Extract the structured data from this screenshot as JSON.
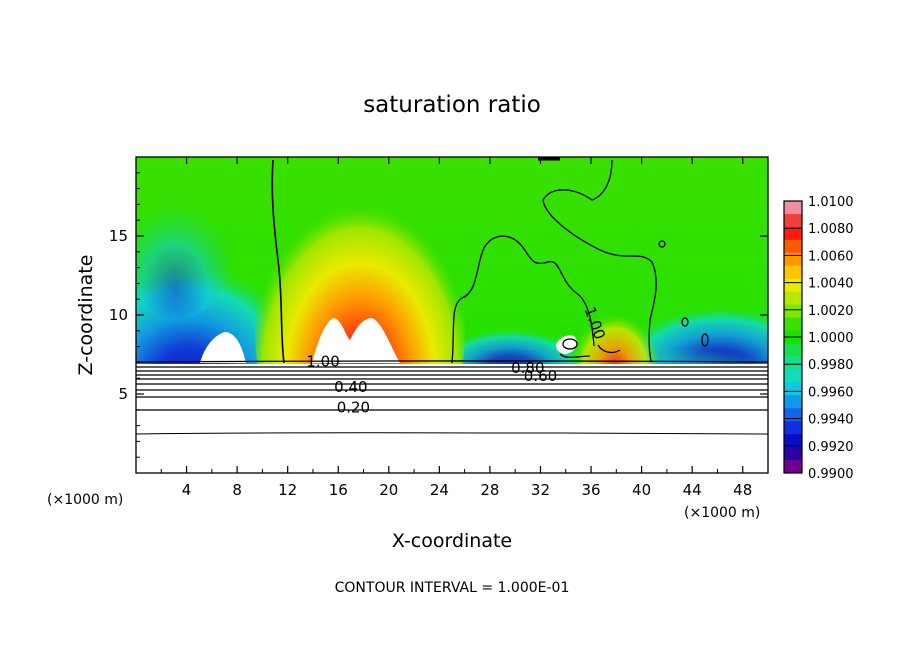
{
  "chart_data": {
    "type": "heatmap",
    "title": "saturation ratio",
    "xlabel": "X-coordinate",
    "ylabel": "Z-coordinate",
    "x_unit": "(×1000 m)",
    "x_unit_right": "(×1000 m)",
    "footer": "CONTOUR INTERVAL = 1.000E-01",
    "xlim": [
      0,
      50
    ],
    "ylim": [
      0,
      20
    ],
    "x_ticks": [
      4,
      8,
      12,
      16,
      20,
      24,
      28,
      32,
      36,
      40,
      44,
      48
    ],
    "y_ticks": [
      5,
      10,
      15
    ],
    "colorbar": {
      "min": 0.99,
      "max": 1.01,
      "step": 0.001,
      "labels": [
        "1.0100",
        "1.0080",
        "1.0060",
        "1.0040",
        "1.0020",
        "1.0000",
        "0.9980",
        "0.9960",
        "0.9940",
        "0.9920",
        "0.9900"
      ],
      "colors": [
        "#ef8ea0",
        "#ef3f3f",
        "#ff1a10",
        "#ff5a00",
        "#ff9800",
        "#ffc600",
        "#eaea00",
        "#b6e800",
        "#7ee600",
        "#3ae000",
        "#18e000",
        "#17e04a",
        "#15df8a",
        "#12dcbc",
        "#10c8e0",
        "#1098ec",
        "#1066ec",
        "#1030e0",
        "#0b0bc8",
        "#2a00a8",
        "#700090"
      ]
    },
    "contour_labels": [
      {
        "value": "1.00",
        "x": 14.8,
        "z": 6.8
      },
      {
        "value": "0.40",
        "x": 17.0,
        "z": 5.2
      },
      {
        "value": "0.20",
        "x": 17.2,
        "z": 3.9
      },
      {
        "value": "0.80",
        "x": 31.0,
        "z": 6.4
      },
      {
        "value": "0.60",
        "x": 32.0,
        "z": 5.9
      },
      {
        "value": "1.00",
        "x": 36.0,
        "z": 9.4
      }
    ],
    "features": [
      {
        "kind": "dry-minimum",
        "x": 6.5,
        "z": 9.2,
        "value": 0.99
      },
      {
        "kind": "supersaturated-maximum",
        "x": 17.5,
        "z": 9.5,
        "value": 1.007
      },
      {
        "kind": "supersaturated-maximum",
        "x": 38.5,
        "z": 8.0,
        "value": 1.006
      },
      {
        "kind": "dry-minimum",
        "x": 30.0,
        "z": 8.0,
        "value": 0.992
      }
    ]
  }
}
